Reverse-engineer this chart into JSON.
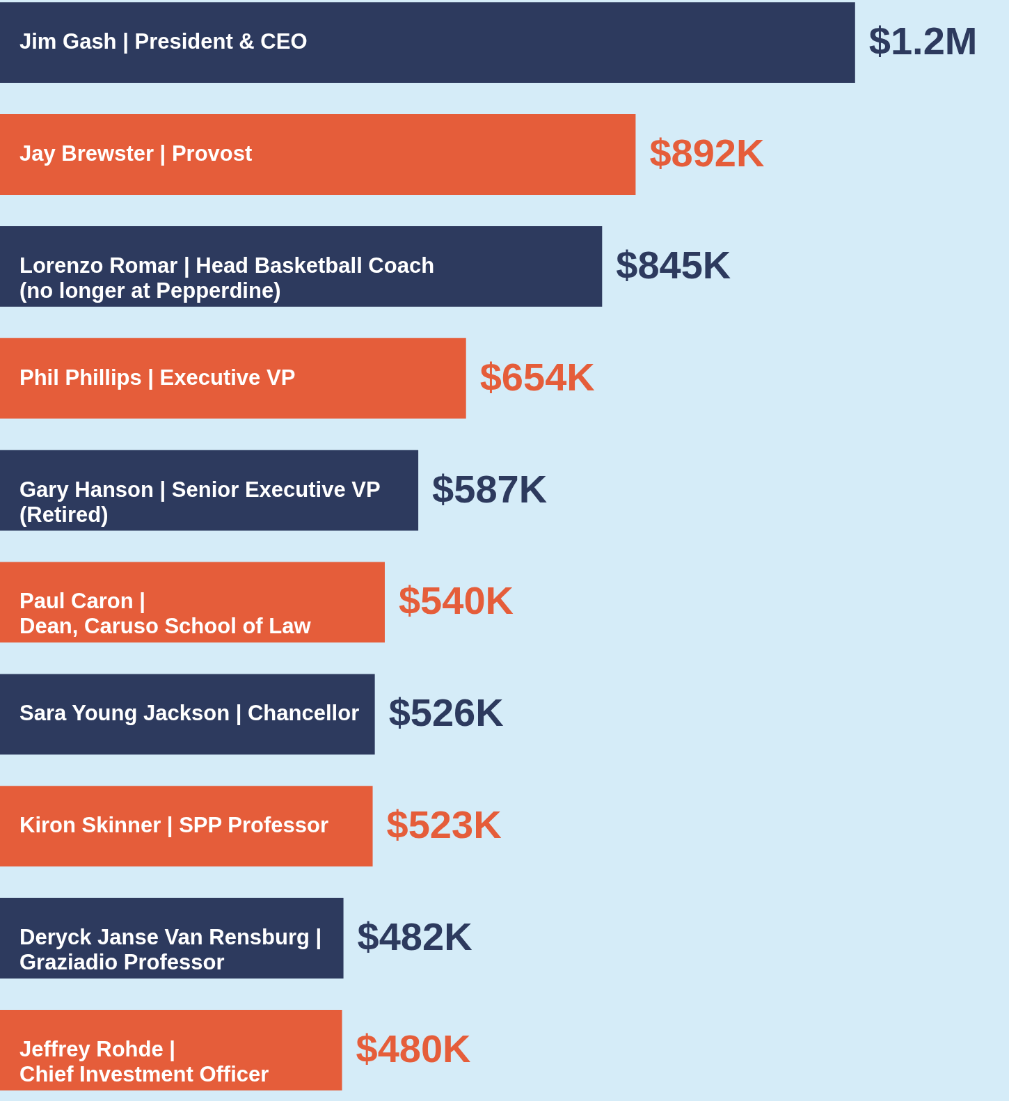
{
  "chart_data": {
    "type": "bar",
    "orientation": "horizontal",
    "categories": [
      "Jim Gash | President & CEO",
      "Jay Brewster | Provost",
      "Lorenzo Romar | Head Basketball Coach\n(no longer at Pepperdine)",
      "Phil Phillips | Executive VP",
      "Gary Hanson | Senior Executive VP\n(Retired)",
      "Paul Caron |\nDean, Caruso School of Law",
      "Sara Young Jackson | Chancellor",
      "Kiron Skinner | SPP Professor",
      "Deryck Janse Van Rensburg |\nGraziadio Professor",
      "Jeffrey Rohde |\nChief Investment Officer"
    ],
    "values": [
      1200000,
      892000,
      845000,
      654000,
      587000,
      540000,
      526000,
      523000,
      482000,
      480000
    ],
    "value_labels": [
      "$1.2M",
      "$892K",
      "$845K",
      "$654K",
      "$587K",
      "$540K",
      "$526K",
      "$523K",
      "$482K",
      "$480K"
    ],
    "colors": [
      "#2d3a5e",
      "#e55d3a",
      "#2d3a5e",
      "#e55d3a",
      "#2d3a5e",
      "#e55d3a",
      "#2d3a5e",
      "#e55d3a",
      "#2d3a5e",
      "#e55d3a"
    ]
  }
}
